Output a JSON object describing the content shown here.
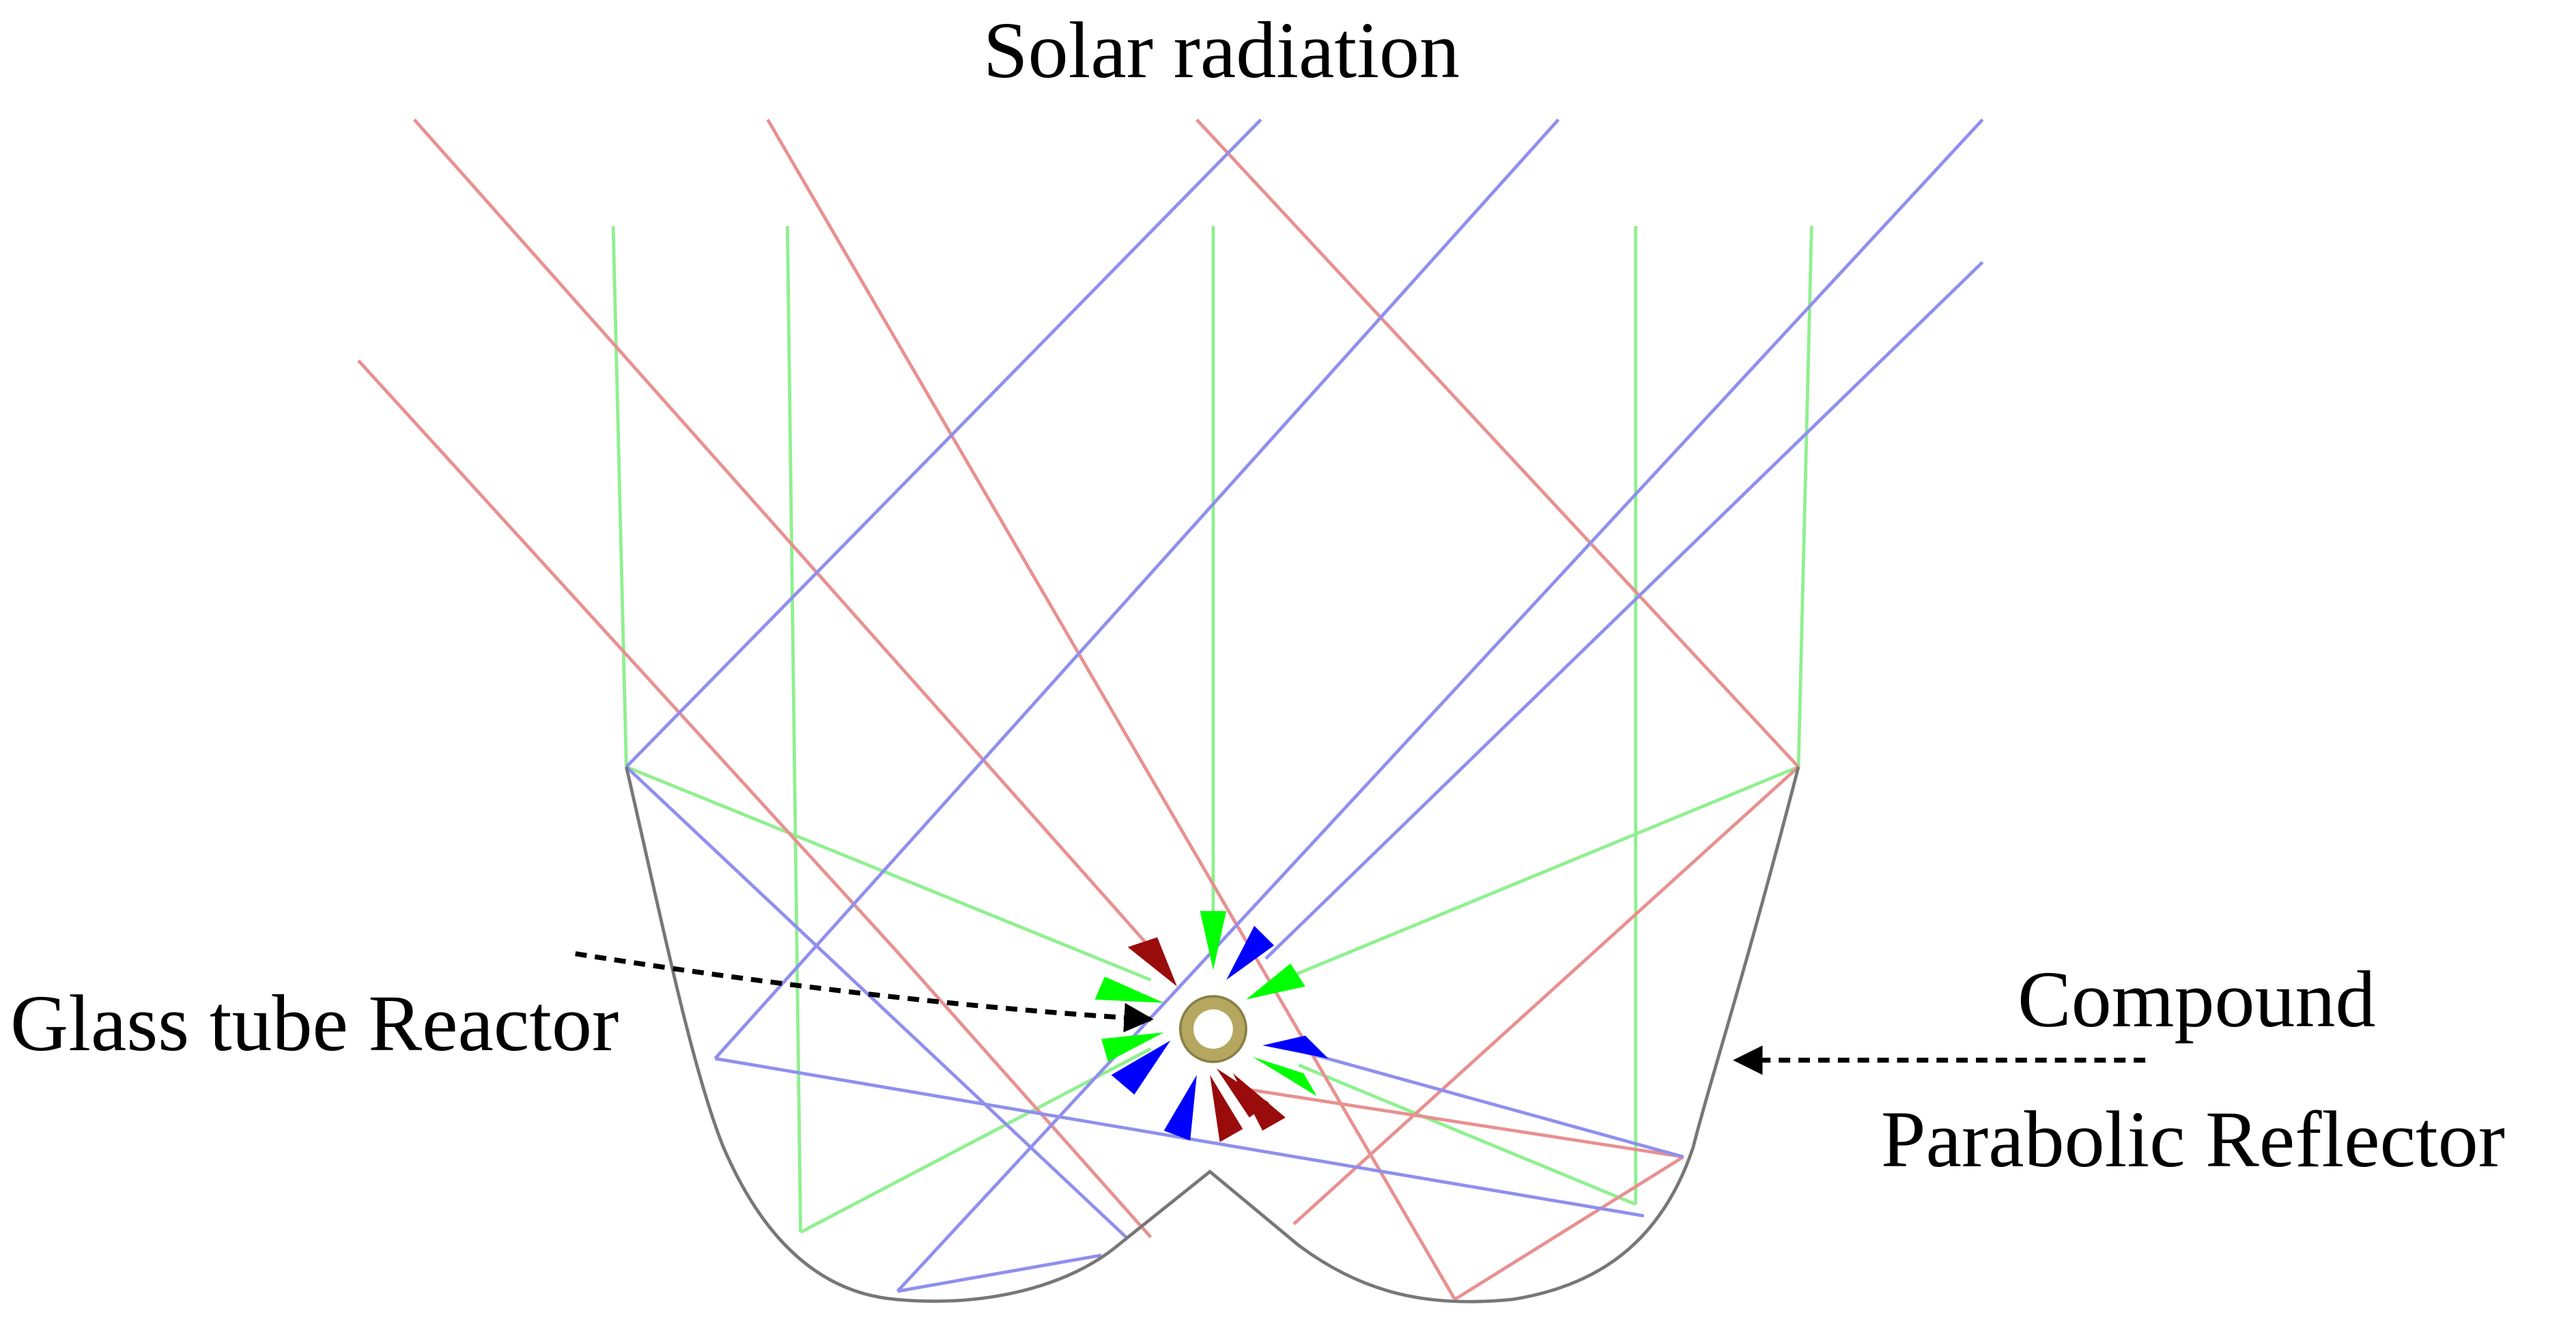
{
  "title": "Solar radiation",
  "labels": {
    "glass_tube_reactor": "Glass tube Reactor",
    "cpc_line1": "Compound",
    "cpc_line2": "Parabolic Reflector"
  },
  "colors": {
    "red_rays": "#e89090",
    "blue_rays": "#8f8fee",
    "green_rays": "#8ff08f",
    "reflector": "#777777",
    "tube_ring": "#b5a760",
    "arrow_red": "#9a0b0b",
    "arrow_blue": "#0000ff",
    "arrow_green": "#00ff00",
    "pointer": "#000000"
  },
  "icons": {
    "reflector": "compound-parabolic-reflector-shape",
    "reactor": "glass-tube-ring",
    "pointer": "dashed-arrow"
  }
}
